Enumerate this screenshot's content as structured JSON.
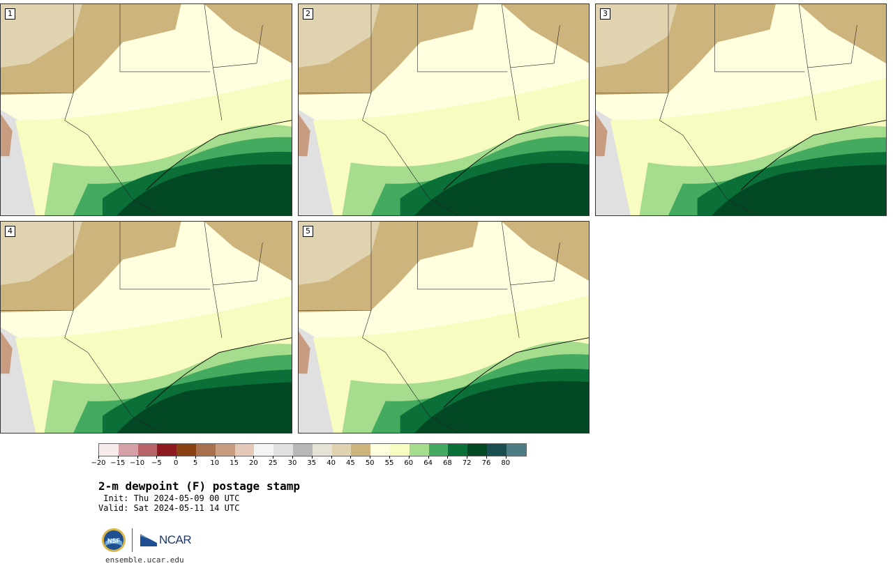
{
  "figure": {
    "title": "2-m dewpoint (F) postage stamp",
    "init": " Init: Thu 2024-05-09 00 UTC",
    "valid": "Valid: Sat 2024-05-11 14 UTC",
    "website": "ensemble.ucar.edu"
  },
  "panels": [
    {
      "label": "1"
    },
    {
      "label": "2"
    },
    {
      "label": "3"
    },
    {
      "label": "4"
    },
    {
      "label": "5"
    }
  ],
  "colorbar": {
    "units": "F",
    "tick_labels": [
      "−20",
      "−15",
      "−10",
      "−5",
      "0",
      "5",
      "10",
      "15",
      "20",
      "25",
      "30",
      "35",
      "40",
      "45",
      "50",
      "55",
      "60",
      "64",
      "68",
      "72",
      "76",
      "80"
    ],
    "colors": [
      "#f6ecec",
      "#d6a0a8",
      "#b86468",
      "#8c1a20",
      "#8a4010",
      "#a8704c",
      "#c89c80",
      "#e4c8b8",
      "#f4f4f4",
      "#e0e0e0",
      "#b8b8b8",
      "#e6e2d6",
      "#e0d4b0",
      "#ccb47c",
      "#ffffe0",
      "#f8fcc0",
      "#a6dc8e",
      "#44aa60",
      "#0a7038",
      "#034824",
      "#1a4f50",
      "#4e7c84"
    ]
  },
  "logos": {
    "nsf": "NSF",
    "ncar": "NCAR"
  }
}
